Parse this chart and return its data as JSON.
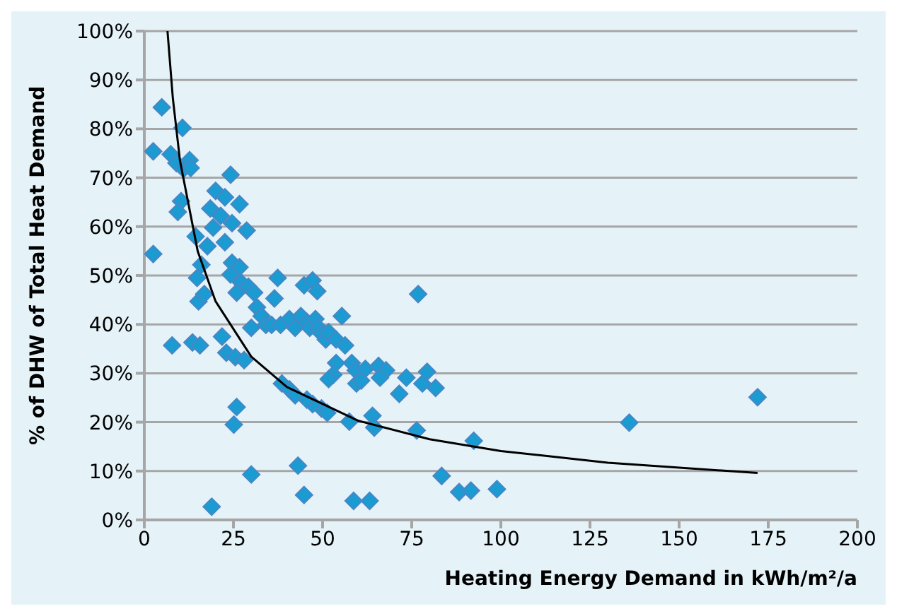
{
  "chart_data": {
    "type": "scatter",
    "xlabel": "Heating Energy Demand in kWh/m²/a",
    "ylabel": "% of DHW  of Total Heat Demand",
    "xlim": [
      0,
      200
    ],
    "xticks": [
      0,
      25,
      50,
      75,
      100,
      125,
      150,
      175,
      200
    ],
    "ylim": [
      0,
      100
    ],
    "yticks": [
      {
        "value": 0,
        "label": "0%"
      },
      {
        "value": 10,
        "label": "10%"
      },
      {
        "value": 20,
        "label": "20%"
      },
      {
        "value": 30,
        "label": "30%"
      },
      {
        "value": 40,
        "label": "40%"
      },
      {
        "value": 50,
        "label": "50%"
      },
      {
        "value": 60,
        "label": "60%"
      },
      {
        "value": 70,
        "label": "70%"
      },
      {
        "value": 80,
        "label": "80%"
      },
      {
        "value": 90,
        "label": "90%"
      },
      {
        "value": 100,
        "label": "100%"
      }
    ],
    "grid": "y",
    "legend": false,
    "series": [
      {
        "type": "scatter",
        "marker": "diamond",
        "color": "#1a9bd1",
        "x": [
          4.9,
          2.5,
          2.5,
          7.8,
          7.4,
          9,
          10.7,
          11,
          10.3,
          9.4,
          12.7,
          13,
          14.4,
          14.8,
          13.5,
          15.6,
          15.2,
          16.8,
          16,
          17.7,
          18.5,
          19.3,
          20,
          22.6,
          24.2,
          21.4,
          22.6,
          24.6,
          26.7,
          28.7,
          24.6,
          26.7,
          24.2,
          27.1,
          25.9,
          29.2,
          30.8,
          30,
          31.6,
          32.9,
          34.1,
          21.8,
          23,
          25.5,
          28,
          25.9,
          25.1,
          30,
          18.9,
          37.4,
          36.5,
          35.7,
          38.2,
          38.6,
          40.7,
          42.3,
          40.7,
          42.3,
          43.9,
          45.6,
          46.4,
          44.8,
          47.2,
          48.5,
          48,
          48.9,
          49.7,
          50.9,
          51.7,
          53.8,
          55.4,
          53.8,
          53,
          51.7,
          49.7,
          51.3,
          47.2,
          45.6,
          43.1,
          44.8,
          56.3,
          58.2,
          59.3,
          59.5,
          60.8,
          62,
          57.5,
          58.7,
          63.2,
          64,
          64.5,
          65.7,
          67.8,
          66.1,
          71.5,
          73.5,
          76.8,
          78,
          79.3,
          81.7,
          76.4,
          83.4,
          88.3,
          91.6,
          92.4,
          98.9,
          136,
          172
        ],
        "values": [
          84.4,
          75.4,
          54.4,
          35.7,
          74.8,
          73,
          80.2,
          71.8,
          65.2,
          63,
          73.6,
          72,
          58,
          49.5,
          36.3,
          35.7,
          44.7,
          46.2,
          52.2,
          56,
          63.7,
          59.8,
          67.3,
          66,
          70.6,
          62.2,
          56.8,
          60.7,
          64.6,
          59.2,
          52.6,
          51.7,
          50.2,
          48.6,
          46.5,
          47.7,
          46.5,
          39.3,
          43.5,
          41.7,
          39.9,
          37.5,
          34.2,
          33.3,
          32.7,
          23.1,
          19.5,
          9.3,
          2.7,
          49.5,
          45.3,
          39.9,
          39.9,
          27.9,
          26.7,
          25.5,
          41.1,
          39.3,
          41.7,
          40.5,
          39.3,
          48,
          49,
          46.8,
          41.1,
          39.3,
          38.1,
          36.9,
          38.4,
          36.9,
          41.7,
          32.1,
          29.7,
          28.8,
          22.8,
          21.9,
          23.7,
          24.6,
          11.1,
          5.1,
          35.7,
          32.1,
          30.6,
          27.9,
          28.5,
          30.9,
          20.1,
          3.9,
          3.9,
          21.3,
          18.9,
          31.5,
          30.6,
          29.1,
          25.8,
          29.1,
          46.2,
          27.9,
          30.3,
          27,
          18.3,
          9,
          5.7,
          6,
          16.2,
          6.3,
          19.9,
          25.1
        ]
      },
      {
        "type": "line",
        "marker": "none",
        "color": "#000000",
        "x": [
          6.5,
          8,
          10,
          15,
          20,
          30,
          40,
          60,
          80,
          100,
          130,
          172
        ],
        "values": [
          100,
          86.3,
          73.5,
          54.9,
          44.7,
          33.4,
          27.2,
          20.3,
          16.5,
          14.1,
          11.7,
          9.6
        ]
      }
    ]
  }
}
